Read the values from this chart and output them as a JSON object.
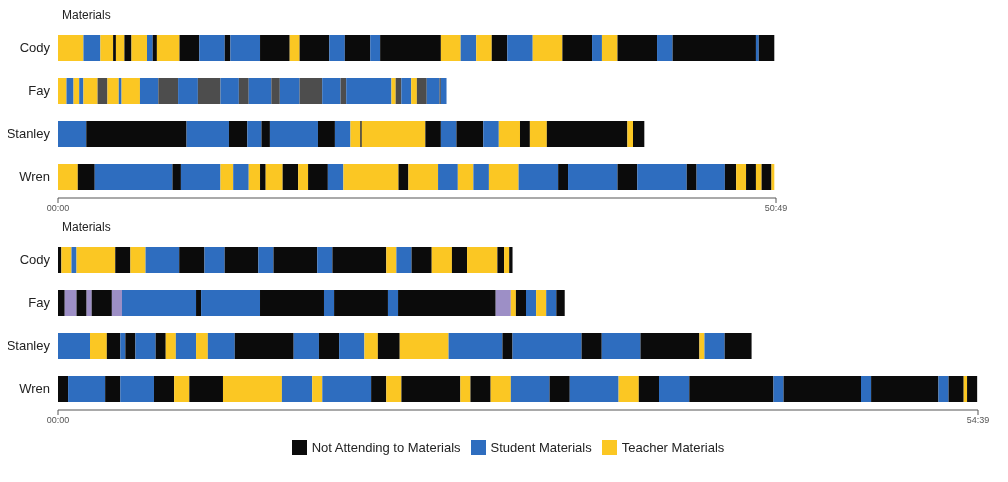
{
  "chart_data": [
    {
      "type": "bar",
      "orientation": "horizontal",
      "stacked": true,
      "title": "Materials",
      "categories": [
        "Cody",
        "Fay",
        "Stanley",
        "Wren"
      ],
      "xlim": [
        0,
        50.82
      ],
      "xticks": [
        {
          "value": 0,
          "label": "00:00"
        },
        {
          "value": 50.82,
          "label": "50:49"
        }
      ],
      "series": [
        {
          "values": [
            1.8,
            0.6,
            2.0,
            1.4
          ],
          "colors": [
            "#fbc723",
            "#fbc723",
            "#2e6dbf",
            "#fbc723"
          ]
        },
        {
          "values": [
            1.2,
            0.5,
            7.1,
            1.2
          ],
          "colors": [
            "#2e6dbf",
            "#2e6dbf",
            "#0b0b0b",
            "#0b0b0b"
          ]
        },
        {
          "values": [
            0.9,
            0.4,
            3.0,
            5.5
          ],
          "colors": [
            "#fbc723",
            "#fbc723",
            "#2e6dbf",
            "#2e6dbf"
          ]
        },
        {
          "values": [
            0.2,
            0.3,
            1.3,
            0.6
          ],
          "colors": [
            "#0b0b0b",
            "#2e6dbf",
            "#0b0b0b",
            "#0b0b0b"
          ]
        },
        {
          "values": [
            0.6,
            1.0,
            1.0,
            2.8
          ],
          "colors": [
            "#fbc723",
            "#fbc723",
            "#2e6dbf",
            "#2e6dbf"
          ]
        },
        {
          "values": [
            0.5,
            0.7,
            0.6,
            0.9
          ],
          "colors": [
            "#0b0b0b",
            "#4d4d4d",
            "#0b0b0b",
            "#fbc723"
          ]
        },
        {
          "values": [
            1.1,
            0.8,
            3.4,
            1.1
          ],
          "colors": [
            "#fbc723",
            "#fbc723",
            "#2e6dbf",
            "#2e6dbf"
          ]
        },
        {
          "values": [
            0.4,
            0.2,
            1.2,
            0.8
          ],
          "colors": [
            "#2e6dbf",
            "#2e6dbf",
            "#0b0b0b",
            "#fbc723"
          ]
        },
        {
          "values": [
            0.3,
            1.3,
            1.1,
            0.4
          ],
          "colors": [
            "#0b0b0b",
            "#fbc723",
            "#2e6dbf",
            "#0b0b0b"
          ]
        },
        {
          "values": [
            1.6,
            1.3,
            0.7,
            1.2
          ],
          "colors": [
            "#fbc723",
            "#2e6dbf",
            "#fbc723",
            "#fbc723"
          ]
        },
        {
          "values": [
            1.4,
            1.4,
            0.1,
            1.1
          ],
          "colors": [
            "#0b0b0b",
            "#4d4d4d",
            "#0b0b0b",
            "#0b0b0b"
          ]
        },
        {
          "values": [
            1.8,
            1.4,
            4.5,
            0.7
          ],
          "colors": [
            "#2e6dbf",
            "#2e6dbf",
            "#fbc723",
            "#fbc723"
          ]
        },
        {
          "values": [
            0.4,
            1.6,
            1.1,
            1.4
          ],
          "colors": [
            "#0b0b0b",
            "#4d4d4d",
            "#0b0b0b",
            "#0b0b0b"
          ]
        },
        {
          "values": [
            2.1,
            1.3,
            1.1,
            1.1
          ],
          "colors": [
            "#2e6dbf",
            "#2e6dbf",
            "#2e6dbf",
            "#2e6dbf"
          ]
        },
        {
          "values": [
            2.1,
            0.7,
            1.9,
            3.9
          ],
          "colors": [
            "#0b0b0b",
            "#4d4d4d",
            "#0b0b0b",
            "#fbc723"
          ]
        },
        {
          "values": [
            0.7,
            1.6,
            1.1,
            0.7
          ],
          "colors": [
            "#fbc723",
            "#2e6dbf",
            "#2e6dbf",
            "#0b0b0b"
          ]
        },
        {
          "values": [
            2.1,
            0.6,
            1.5,
            2.1
          ],
          "colors": [
            "#0b0b0b",
            "#4d4d4d",
            "#fbc723",
            "#fbc723"
          ]
        },
        {
          "values": [
            1.1,
            1.4,
            0.7,
            1.4
          ],
          "colors": [
            "#2e6dbf",
            "#2e6dbf",
            "#0b0b0b",
            "#2e6dbf"
          ]
        },
        {
          "values": [
            1.8,
            1.6,
            1.2,
            1.1
          ],
          "colors": [
            "#0b0b0b",
            "#4d4d4d",
            "#fbc723",
            "#fbc723"
          ]
        },
        {
          "values": [
            0.7,
            1.3,
            5.7,
            1.1
          ],
          "colors": [
            "#2e6dbf",
            "#2e6dbf",
            "#0b0b0b",
            "#2e6dbf"
          ]
        },
        {
          "values": [
            4.3,
            0.4,
            0.4,
            2.1
          ],
          "colors": [
            "#0b0b0b",
            "#4d4d4d",
            "#fbc723",
            "#fbc723"
          ]
        },
        {
          "values": [
            1.4,
            3.2,
            0.8,
            2.8
          ],
          "colors": [
            "#fbc723",
            "#2e6dbf",
            "#0b0b0b",
            "#2e6dbf"
          ]
        },
        {
          "values": [
            1.1,
            0.3,
            null,
            0.7
          ],
          "colors": [
            "#2e6dbf",
            "#fbc723",
            null,
            "#0b0b0b"
          ]
        },
        {
          "values": [
            1.1,
            0.4,
            null,
            3.5
          ],
          "colors": [
            "#fbc723",
            "#4d4d4d",
            null,
            "#2e6dbf"
          ]
        },
        {
          "values": [
            1.1,
            0.7,
            null,
            1.4
          ],
          "colors": [
            "#0b0b0b",
            "#2e6dbf",
            null,
            "#0b0b0b"
          ]
        },
        {
          "values": [
            1.8,
            0.4,
            null,
            3.5
          ],
          "colors": [
            "#2e6dbf",
            "#fbc723",
            null,
            "#2e6dbf"
          ]
        },
        {
          "values": [
            2.1,
            0.7,
            null,
            0.7
          ],
          "colors": [
            "#fbc723",
            "#4d4d4d",
            null,
            "#0b0b0b"
          ]
        },
        {
          "values": [
            2.1,
            0.9,
            null,
            2.0
          ],
          "colors": [
            "#0b0b0b",
            "#2e6dbf",
            null,
            "#2e6dbf"
          ]
        },
        {
          "values": [
            0.7,
            0.1,
            null,
            0.8
          ],
          "colors": [
            "#2e6dbf",
            "#4d4d4d",
            null,
            "#0b0b0b"
          ]
        },
        {
          "values": [
            1.1,
            0.4,
            null,
            0.7
          ],
          "colors": [
            "#fbc723",
            "#2e6dbf",
            null,
            "#fbc723"
          ]
        },
        {
          "values": [
            2.8,
            null,
            null,
            0.7
          ],
          "colors": [
            "#0b0b0b",
            null,
            null,
            "#0b0b0b"
          ]
        },
        {
          "values": [
            1.1,
            null,
            null,
            0.4
          ],
          "colors": [
            "#2e6dbf",
            null,
            null,
            "#fbc723"
          ]
        },
        {
          "values": [
            5.9,
            null,
            null,
            0.7
          ],
          "colors": [
            "#0b0b0b",
            null,
            null,
            "#0b0b0b"
          ]
        },
        {
          "values": [
            0.2,
            null,
            null,
            0.2
          ],
          "colors": [
            "#2e6dbf",
            null,
            null,
            "#fbc723"
          ]
        },
        {
          "values": [
            1.1,
            null,
            null,
            null
          ],
          "colors": [
            "#0b0b0b",
            null,
            null,
            null
          ]
        }
      ]
    },
    {
      "type": "bar",
      "orientation": "horizontal",
      "stacked": true,
      "title": "Materials",
      "categories": [
        "Cody",
        "Fay",
        "Stanley",
        "Wren"
      ],
      "xlim": [
        0,
        54.65
      ],
      "xticks": [
        {
          "value": 0,
          "label": "00:00"
        },
        {
          "value": 54.65,
          "label": "54:39"
        }
      ],
      "series": [
        {
          "values": [
            0.2,
            0.4,
            1.9,
            0.6
          ],
          "colors": [
            "#0b0b0b",
            "#0b0b0b",
            "#2e6dbf",
            "#0b0b0b"
          ]
        },
        {
          "values": [
            0.6,
            0.7,
            1.0,
            2.2
          ],
          "colors": [
            "#fbc723",
            "#9d8fc6",
            "#fbc723",
            "#2e6dbf"
          ]
        },
        {
          "values": [
            0.3,
            0.6,
            0.8,
            0.9
          ],
          "colors": [
            "#2e6dbf",
            "#0b0b0b",
            "#0b0b0b",
            "#0b0b0b"
          ]
        },
        {
          "values": [
            2.3,
            0.3,
            0.3,
            2.0
          ],
          "colors": [
            "#fbc723",
            "#9d8fc6",
            "#2e6dbf",
            "#2e6dbf"
          ]
        },
        {
          "values": [
            0.9,
            1.2,
            0.6,
            1.2
          ],
          "colors": [
            "#0b0b0b",
            "#0b0b0b",
            "#0b0b0b",
            "#0b0b0b"
          ]
        },
        {
          "values": [
            0.9,
            0.6,
            1.2,
            0.9
          ],
          "colors": [
            "#fbc723",
            "#9d8fc6",
            "#2e6dbf",
            "#fbc723"
          ]
        },
        {
          "values": [
            2.0,
            4.4,
            0.6,
            2.0
          ],
          "colors": [
            "#2e6dbf",
            "#2e6dbf",
            "#0b0b0b",
            "#0b0b0b"
          ]
        },
        {
          "values": [
            1.5,
            0.3,
            0.6,
            3.5
          ],
          "colors": [
            "#0b0b0b",
            "#0b0b0b",
            "#fbc723",
            "#fbc723"
          ]
        },
        {
          "values": [
            1.2,
            3.5,
            1.2,
            1.8
          ],
          "colors": [
            "#2e6dbf",
            "#2e6dbf",
            "#2e6dbf",
            "#2e6dbf"
          ]
        },
        {
          "values": [
            2.0,
            3.8,
            0.7,
            0.6
          ],
          "colors": [
            "#0b0b0b",
            "#0b0b0b",
            "#fbc723",
            "#fbc723"
          ]
        },
        {
          "values": [
            0.9,
            0.6,
            1.6,
            2.9
          ],
          "colors": [
            "#2e6dbf",
            "#2e6dbf",
            "#2e6dbf",
            "#2e6dbf"
          ]
        },
        {
          "values": [
            2.6,
            3.2,
            3.5,
            0.9
          ],
          "colors": [
            "#0b0b0b",
            "#0b0b0b",
            "#0b0b0b",
            "#0b0b0b"
          ]
        },
        {
          "values": [
            0.9,
            0.6,
            1.5,
            0.9
          ],
          "colors": [
            "#2e6dbf",
            "#2e6dbf",
            "#2e6dbf",
            "#fbc723"
          ]
        },
        {
          "values": [
            3.2,
            5.8,
            1.2,
            3.5
          ],
          "colors": [
            "#0b0b0b",
            "#0b0b0b",
            "#0b0b0b",
            "#0b0b0b"
          ]
        },
        {
          "values": [
            0.6,
            0.9,
            1.5,
            0.6
          ],
          "colors": [
            "#fbc723",
            "#9d8fc6",
            "#2e6dbf",
            "#fbc723"
          ]
        },
        {
          "values": [
            0.9,
            0.3,
            0.8,
            1.2
          ],
          "colors": [
            "#2e6dbf",
            "#fbc723",
            "#fbc723",
            "#0b0b0b"
          ]
        },
        {
          "values": [
            1.2,
            0.6,
            1.3,
            1.2
          ],
          "colors": [
            "#0b0b0b",
            "#0b0b0b",
            "#0b0b0b",
            "#fbc723"
          ]
        },
        {
          "values": [
            1.2,
            0.6,
            2.9,
            2.3
          ],
          "colors": [
            "#fbc723",
            "#2e6dbf",
            "#fbc723",
            "#2e6dbf"
          ]
        },
        {
          "values": [
            0.9,
            0.6,
            3.2,
            1.2
          ],
          "colors": [
            "#0b0b0b",
            "#fbc723",
            "#2e6dbf",
            "#0b0b0b"
          ]
        },
        {
          "values": [
            1.8,
            0.6,
            0.6,
            2.9
          ],
          "colors": [
            "#fbc723",
            "#2e6dbf",
            "#0b0b0b",
            "#2e6dbf"
          ]
        },
        {
          "values": [
            0.4,
            0.5,
            4.1,
            1.2
          ],
          "colors": [
            "#0b0b0b",
            "#0b0b0b",
            "#2e6dbf",
            "#fbc723"
          ]
        },
        {
          "values": [
            0.3,
            null,
            1.2,
            1.2
          ],
          "colors": [
            "#fbc723",
            null,
            "#0b0b0b",
            "#0b0b0b"
          ]
        },
        {
          "values": [
            0.2,
            null,
            2.3,
            1.8
          ],
          "colors": [
            "#0b0b0b",
            null,
            "#2e6dbf",
            "#2e6dbf"
          ]
        },
        {
          "values": [
            null,
            null,
            3.5,
            5.0
          ],
          "colors": [
            null,
            null,
            "#0b0b0b",
            "#0b0b0b"
          ]
        },
        {
          "values": [
            null,
            null,
            0.3,
            0.6
          ],
          "colors": [
            null,
            null,
            "#fbc723",
            "#2e6dbf"
          ]
        },
        {
          "values": [
            null,
            null,
            1.2,
            4.6
          ],
          "colors": [
            null,
            null,
            "#2e6dbf",
            "#0b0b0b"
          ]
        },
        {
          "values": [
            null,
            null,
            1.6,
            0.6
          ],
          "colors": [
            null,
            null,
            "#0b0b0b",
            "#2e6dbf"
          ]
        },
        {
          "values": [
            null,
            null,
            null,
            4.0
          ],
          "colors": [
            null,
            null,
            null,
            "#0b0b0b"
          ]
        },
        {
          "values": [
            null,
            null,
            null,
            0.6
          ],
          "colors": [
            null,
            null,
            null,
            "#2e6dbf"
          ]
        },
        {
          "values": [
            null,
            null,
            null,
            0.9
          ],
          "colors": [
            null,
            null,
            null,
            "#0b0b0b"
          ]
        },
        {
          "values": [
            null,
            null,
            null,
            0.2
          ],
          "colors": [
            null,
            null,
            null,
            "#fbc723"
          ]
        },
        {
          "values": [
            null,
            null,
            null,
            0.6
          ],
          "colors": [
            null,
            null,
            null,
            "#0b0b0b"
          ]
        }
      ]
    },
    {
      "type": "other",
      "categories": [
        "Not Attending to Materials",
        "Student Materials",
        "Teacher Materials"
      ],
      "colors": [
        "#0b0b0b",
        "#2e6dbf",
        "#fbc723"
      ]
    }
  ]
}
